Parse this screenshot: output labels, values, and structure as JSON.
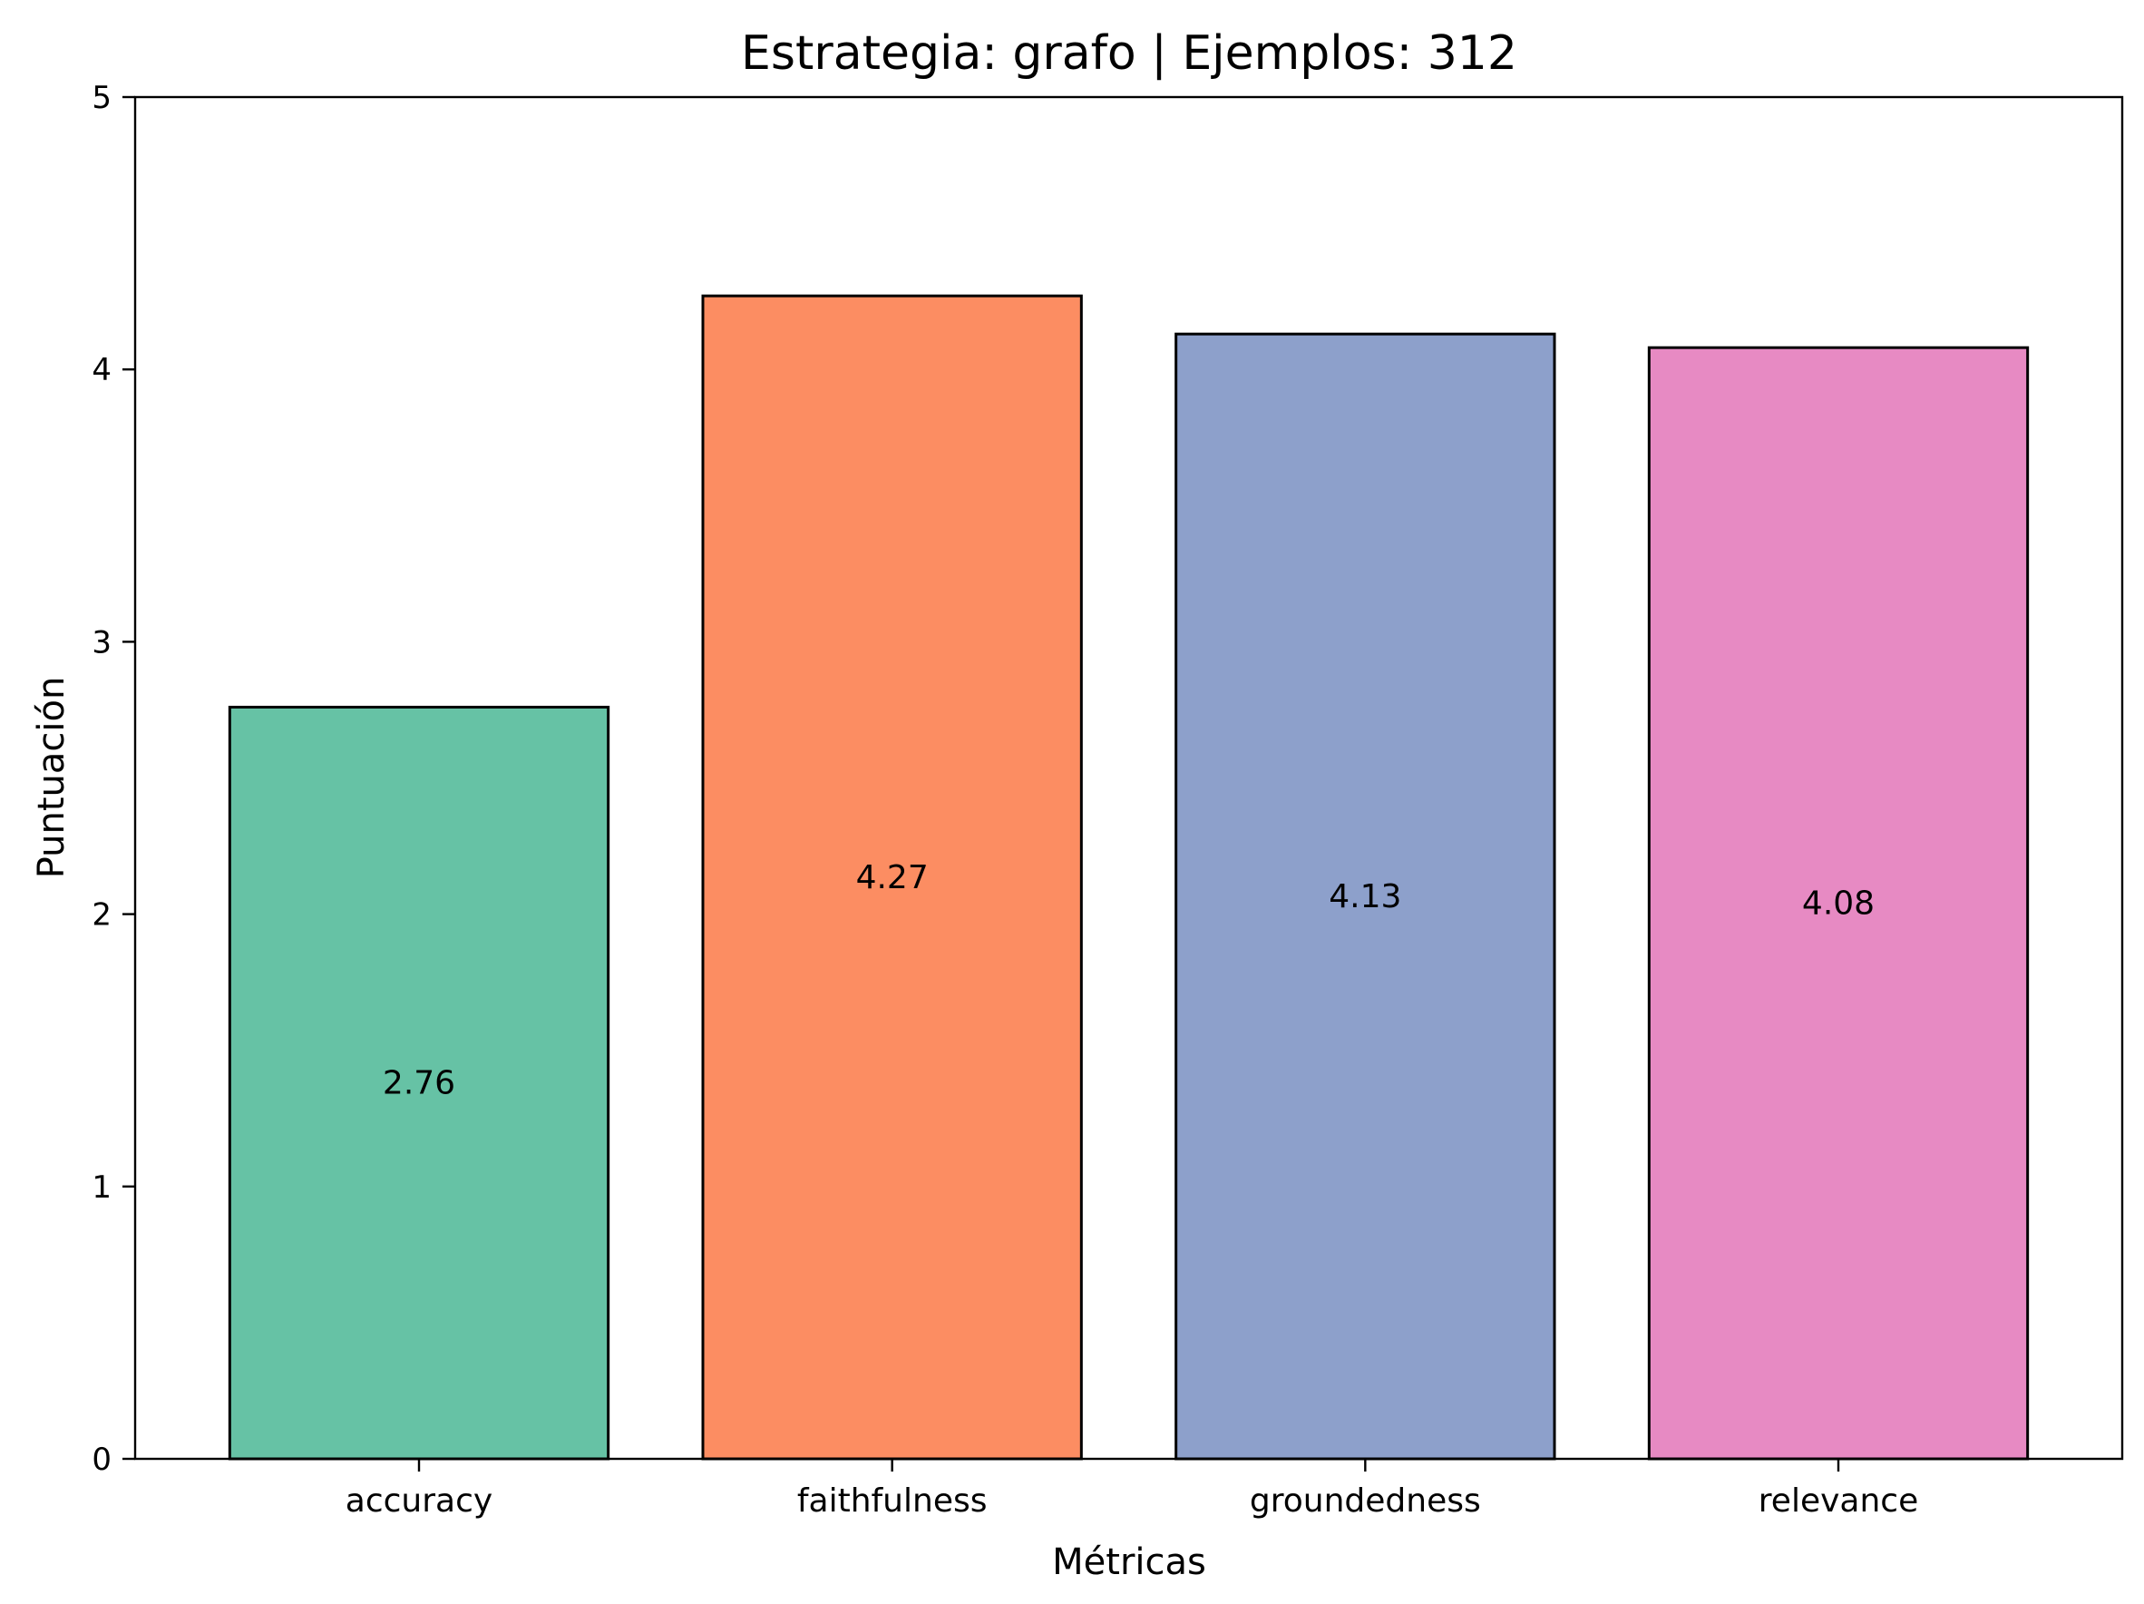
{
  "chart_data": {
    "type": "bar",
    "title": "Estrategia: grafo | Ejemplos: 312",
    "xlabel": "Métricas",
    "ylabel": "Puntuación",
    "categories": [
      "accuracy",
      "faithfulness",
      "groundedness",
      "relevance"
    ],
    "values": [
      2.76,
      4.27,
      4.13,
      4.08
    ],
    "value_labels": [
      "2.76",
      "4.27",
      "4.13",
      "4.08"
    ],
    "colors": [
      "#66c2a5",
      "#fc8d62",
      "#8da0cb",
      "#e78ac3"
    ],
    "ylim": [
      0,
      5
    ],
    "yticks": [
      0,
      1,
      2,
      3,
      4,
      5
    ],
    "grid": false,
    "legend": false
  }
}
